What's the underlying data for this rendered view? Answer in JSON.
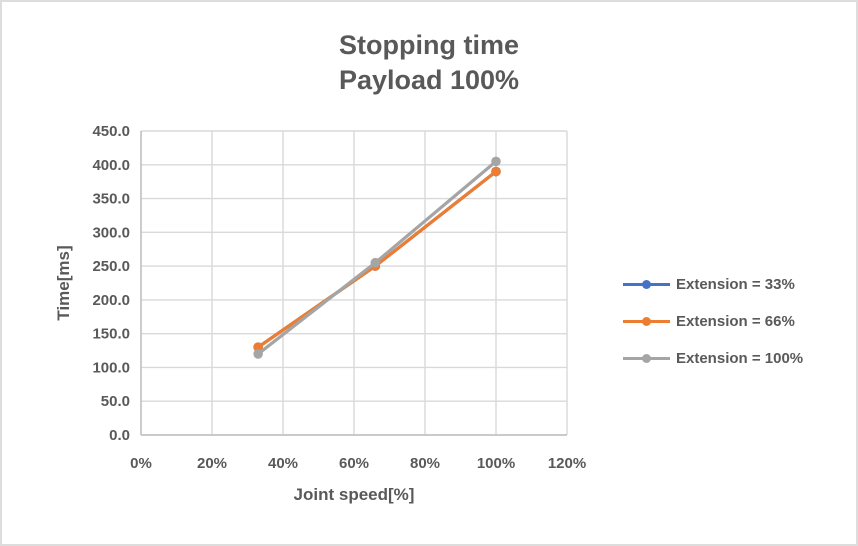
{
  "chart_data": {
    "type": "line",
    "title": "Stopping time",
    "subtitle": "Payload 100%",
    "xlabel": "Joint speed[%]",
    "ylabel": "Time[ms]",
    "x": [
      33,
      66,
      100
    ],
    "series": [
      {
        "name": "Extension = 33%",
        "color": "#4472C4",
        "values": [
          130,
          250,
          390
        ]
      },
      {
        "name": "Extension = 66%",
        "color": "#ED7D31",
        "values": [
          130,
          250,
          390
        ]
      },
      {
        "name": "Extension = 100%",
        "color": "#A5A5A5",
        "values": [
          120,
          255,
          405
        ]
      }
    ],
    "xlim": [
      0,
      120
    ],
    "ylim": [
      0,
      450
    ],
    "xticks": {
      "values": [
        0,
        20,
        40,
        60,
        80,
        100,
        120
      ],
      "labels": [
        "0%",
        "20%",
        "40%",
        "60%",
        "80%",
        "100%",
        "120%"
      ]
    },
    "yticks": {
      "values": [
        0,
        50,
        100,
        150,
        200,
        250,
        300,
        350,
        400,
        450
      ],
      "labels": [
        "0.0",
        "50.0",
        "100.0",
        "150.0",
        "200.0",
        "250.0",
        "300.0",
        "350.0",
        "400.0",
        "450.0"
      ]
    },
    "grid": true,
    "legend_position": "right"
  },
  "styles": {
    "text_color": "#595959",
    "grid_color": "#D9D9D9",
    "axis_color": "#BFBFBF",
    "border_color": "#DDDDDD",
    "background": "#FFFFFF"
  }
}
